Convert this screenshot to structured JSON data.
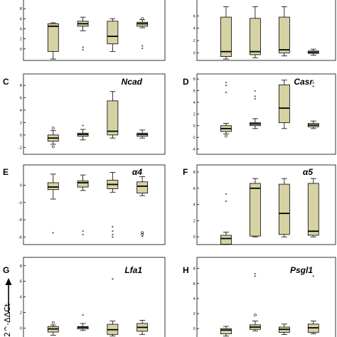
{
  "figure": {
    "y_axis_title": "2^-ΔΔCt",
    "colors": {
      "box_fill": "#d7d2a3",
      "frame": "#000000",
      "background": "#ffffff"
    }
  },
  "chart_data": [
    {
      "id": "A",
      "letter": "",
      "gene": "",
      "type": "boxplot",
      "ylim": [
        -2,
        9
      ],
      "yticks": [
        0,
        2,
        4,
        6,
        8
      ],
      "groups": [
        {
          "q1": -0.5,
          "median": 4.5,
          "q3": 5.0,
          "lo": -2.0,
          "hi": 5.2,
          "outliers": []
        },
        {
          "q1": 4.5,
          "median": 5.0,
          "q3": 5.5,
          "lo": 3.6,
          "hi": 6.3,
          "outliers": [
            {
              "v": 0.2,
              "s": "star"
            },
            {
              "v": -0.3,
              "s": "star"
            }
          ]
        },
        {
          "q1": 1.0,
          "median": 2.5,
          "q3": 5.5,
          "lo": -0.5,
          "hi": 6.0,
          "outliers": []
        },
        {
          "q1": 4.5,
          "median": 5.0,
          "q3": 5.3,
          "lo": 4.2,
          "hi": 5.8,
          "outliers": [
            {
              "v": 6.0,
              "s": "circle"
            },
            {
              "v": 0.5,
              "s": "star"
            },
            {
              "v": 0.0,
              "s": "star"
            }
          ]
        }
      ]
    },
    {
      "id": "B",
      "letter": "",
      "gene": "",
      "type": "boxplot",
      "ylim": [
        -1,
        8
      ],
      "yticks": [
        0,
        2,
        4,
        6
      ],
      "groups": [
        {
          "q1": -0.6,
          "median": 0.2,
          "q3": 5.8,
          "lo": -1.0,
          "hi": 7.5,
          "outliers": []
        },
        {
          "q1": -0.3,
          "median": 0.2,
          "q3": 5.6,
          "lo": -0.8,
          "hi": 7.5,
          "outliers": []
        },
        {
          "q1": 0.0,
          "median": 0.5,
          "q3": 5.8,
          "lo": -0.5,
          "hi": 7.5,
          "outliers": []
        },
        {
          "q1": -0.1,
          "median": 0.1,
          "q3": 0.3,
          "lo": -0.4,
          "hi": 0.6,
          "outliers": []
        }
      ]
    },
    {
      "id": "C",
      "letter": "C",
      "gene": "Ncad",
      "type": "boxplot",
      "ylim": [
        -3,
        9.5
      ],
      "yticks": [
        -2,
        0,
        2,
        4,
        6,
        8
      ],
      "groups": [
        {
          "q1": -1.0,
          "median": -0.5,
          "q3": 0.0,
          "lo": -1.5,
          "hi": 0.7,
          "outliers": [
            {
              "v": 1.1,
              "s": "circle"
            },
            {
              "v": -1.9,
              "s": "circle"
            }
          ]
        },
        {
          "q1": -0.2,
          "median": 0.1,
          "q3": 0.3,
          "lo": -0.8,
          "hi": 0.9,
          "outliers": [
            {
              "v": 1.4,
              "s": "star"
            }
          ]
        },
        {
          "q1": 0.0,
          "median": 0.6,
          "q3": 5.5,
          "lo": -0.5,
          "hi": 7.0,
          "outliers": []
        },
        {
          "q1": -0.2,
          "median": 0.1,
          "q3": 0.3,
          "lo": -0.5,
          "hi": 0.8,
          "outliers": []
        }
      ]
    },
    {
      "id": "D",
      "letter": "D",
      "gene": "Casr",
      "type": "boxplot",
      "ylim": [
        -6,
        8.5
      ],
      "yticks": [
        -6,
        -4,
        -2,
        0,
        2,
        4,
        6,
        8
      ],
      "groups": [
        {
          "q1": -1.0,
          "median": -0.5,
          "q3": 0.0,
          "lo": -1.4,
          "hi": 0.4,
          "outliers": [
            {
              "v": 7.3,
              "s": "star"
            },
            {
              "v": 6.8,
              "s": "star"
            },
            {
              "v": 5.6,
              "s": "star"
            },
            {
              "v": -1.8,
              "s": "circle"
            }
          ]
        },
        {
          "q1": 0.0,
          "median": 0.3,
          "q3": 0.5,
          "lo": -0.5,
          "hi": 1.2,
          "outliers": [
            {
              "v": 5.8,
              "s": "star"
            },
            {
              "v": 4.9,
              "s": "star"
            },
            {
              "v": 4.5,
              "s": "star"
            }
          ]
        },
        {
          "q1": 0.5,
          "median": 3.0,
          "q3": 7.0,
          "lo": -0.5,
          "hi": 7.8,
          "outliers": []
        },
        {
          "q1": -0.2,
          "median": 0.1,
          "q3": 0.4,
          "lo": -0.5,
          "hi": 0.8,
          "outliers": [
            {
              "v": 7.2,
              "s": "star"
            },
            {
              "v": 6.6,
              "s": "star"
            }
          ]
        }
      ]
    },
    {
      "id": "E",
      "letter": "E",
      "gene": "α4",
      "type": "boxplot",
      "ylim": [
        -6.8,
        2.2
      ],
      "yticks": [
        -6,
        -4,
        -2,
        0
      ],
      "groups": [
        {
          "q1": -0.5,
          "median": -0.2,
          "q3": 0.3,
          "lo": -1.6,
          "hi": 1.3,
          "outliers": [
            {
              "v": -5.6,
              "s": "star"
            }
          ]
        },
        {
          "q1": -0.2,
          "median": 0.3,
          "q3": 0.5,
          "lo": -0.6,
          "hi": 1.2,
          "outliers": [
            {
              "v": -5.4,
              "s": "star"
            },
            {
              "v": -5.8,
              "s": "star"
            }
          ]
        },
        {
          "q1": -0.4,
          "median": 0.1,
          "q3": 0.6,
          "lo": -0.8,
          "hi": 1.5,
          "outliers": [
            {
              "v": -4.9,
              "s": "star"
            },
            {
              "v": -5.4,
              "s": "star"
            },
            {
              "v": -5.8,
              "s": "star"
            },
            {
              "v": -6.1,
              "s": "star"
            }
          ]
        },
        {
          "q1": -0.9,
          "median": -0.1,
          "q3": 0.4,
          "lo": -1.2,
          "hi": 1.0,
          "outliers": [
            {
              "v": -5.5,
              "s": "circle"
            },
            {
              "v": -5.7,
              "s": "circle"
            },
            {
              "v": -6.0,
              "s": "star"
            }
          ]
        }
      ]
    },
    {
      "id": "F",
      "letter": "F",
      "gene": "α5",
      "type": "boxplot",
      "ylim": [
        -2.7,
        8.7
      ],
      "yticks": [
        -2,
        0,
        2,
        4,
        6,
        8
      ],
      "groups": [
        {
          "q1": -0.9,
          "median": -0.2,
          "q3": 0.2,
          "lo": -1.8,
          "hi": 0.6,
          "outliers": [
            {
              "v": 5.2,
              "s": "star"
            },
            {
              "v": 4.3,
              "s": "star"
            }
          ]
        },
        {
          "q1": 0.1,
          "median": 6.0,
          "q3": 6.6,
          "lo": 0.0,
          "hi": 7.2,
          "outliers": []
        },
        {
          "q1": 0.3,
          "median": 2.9,
          "q3": 6.5,
          "lo": 0.0,
          "hi": 7.2,
          "outliers": []
        },
        {
          "q1": 0.2,
          "median": 0.7,
          "q3": 6.6,
          "lo": 0.0,
          "hi": 7.2,
          "outliers": []
        }
      ]
    },
    {
      "id": "G",
      "letter": "G",
      "gene": "Lfa1",
      "type": "boxplot",
      "ylim": [
        -1.5,
        8.8
      ],
      "yticks": [
        0,
        2,
        4,
        6,
        8
      ],
      "groups": [
        {
          "q1": -0.5,
          "median": -0.1,
          "q3": 0.2,
          "lo": -0.9,
          "hi": 0.4,
          "outliers": [
            {
              "v": 0.7,
              "s": "circle"
            }
          ]
        },
        {
          "q1": -0.1,
          "median": 0.1,
          "q3": 0.2,
          "lo": -0.3,
          "hi": 0.6,
          "outliers": [
            {
              "v": 1.6,
              "s": "star"
            }
          ]
        },
        {
          "q1": -0.8,
          "median": -0.2,
          "q3": 0.5,
          "lo": -1.0,
          "hi": 0.9,
          "outliers": [
            {
              "v": 6.2,
              "s": "star"
            }
          ]
        },
        {
          "q1": -0.4,
          "median": 0.1,
          "q3": 0.6,
          "lo": -0.8,
          "hi": 1.0,
          "outliers": []
        }
      ]
    },
    {
      "id": "H",
      "letter": "H",
      "gene": "Psgl1",
      "type": "boxplot",
      "ylim": [
        -1.5,
        9.2
      ],
      "yticks": [
        0,
        2,
        4,
        6,
        8
      ],
      "groups": [
        {
          "q1": -0.7,
          "median": -0.2,
          "q3": 0.0,
          "lo": -1.0,
          "hi": 0.3,
          "outliers": []
        },
        {
          "q1": -0.1,
          "median": 0.2,
          "q3": 0.5,
          "lo": -0.3,
          "hi": 1.0,
          "outliers": [
            {
              "v": 7.2,
              "s": "star"
            },
            {
              "v": 6.9,
              "s": "star"
            },
            {
              "v": 1.8,
              "s": "circle"
            }
          ]
        },
        {
          "q1": -0.5,
          "median": -0.1,
          "q3": 0.2,
          "lo": -0.8,
          "hi": 0.6,
          "outliers": []
        },
        {
          "q1": -0.5,
          "median": 0.1,
          "q3": 0.6,
          "lo": -0.7,
          "hi": 1.0,
          "outliers": [
            {
              "v": 6.9,
              "s": "star"
            }
          ]
        }
      ]
    }
  ]
}
